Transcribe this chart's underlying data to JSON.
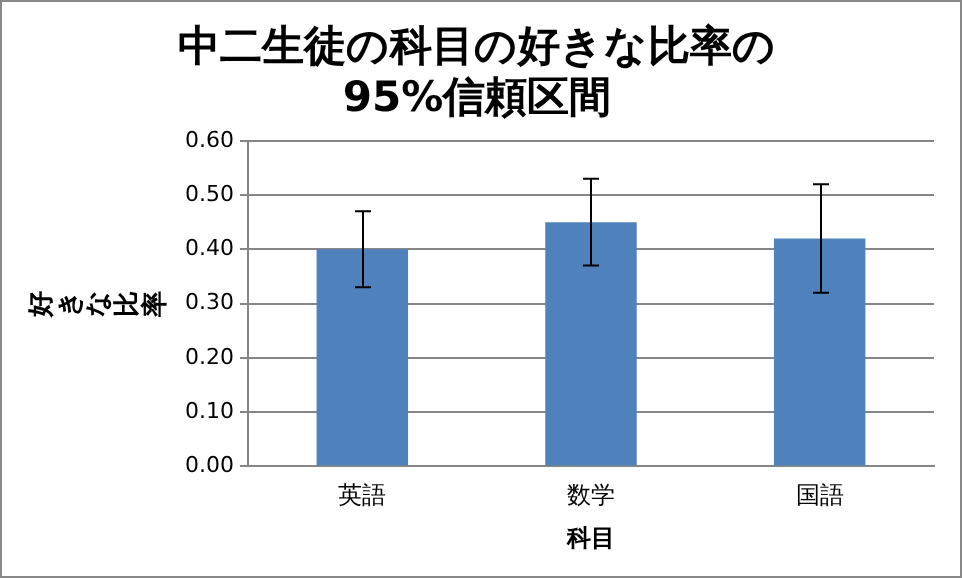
{
  "chart_data": {
    "type": "bar",
    "title": "中二生徒の科目の好きな比率の\n95%信頼区間",
    "xlabel": "科目",
    "ylabel": "好きな比率",
    "categories": [
      "英語",
      "数学",
      "国語"
    ],
    "values": [
      0.4,
      0.45,
      0.42
    ],
    "errors": [
      0.07,
      0.08,
      0.1
    ],
    "color": "#4f81bd",
    "ylim": [
      0,
      0.6
    ],
    "yticks": [
      {
        "value": 0,
        "label": "0.00"
      },
      {
        "value": 0.1,
        "label": "0.10"
      },
      {
        "value": 0.2,
        "label": "0.20"
      },
      {
        "value": 0.3,
        "label": "0.30"
      },
      {
        "value": 0.4,
        "label": "0.40"
      },
      {
        "value": 0.5,
        "label": "0.50"
      },
      {
        "value": 0.6,
        "label": "0.60"
      }
    ],
    "grid": "y",
    "legend": false
  }
}
